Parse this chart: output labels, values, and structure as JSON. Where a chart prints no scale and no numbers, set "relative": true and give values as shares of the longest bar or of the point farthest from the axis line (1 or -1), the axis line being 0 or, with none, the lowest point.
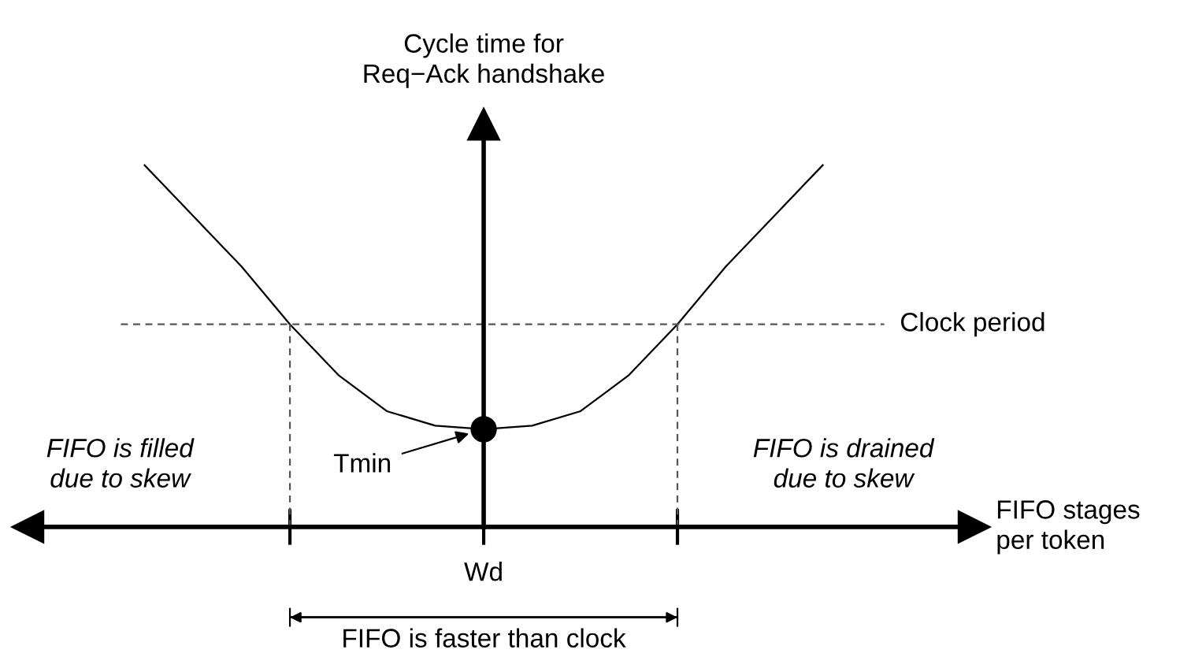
{
  "chart_data": {
    "type": "line",
    "relative": true,
    "ylabel": "Cycle time for\nReq−Ack handshake",
    "xlabel": "FIFO stages\nper token",
    "categories": [
      null,
      null,
      null,
      null,
      null,
      null,
      null,
      null,
      null,
      null,
      null,
      null,
      null,
      null,
      null
    ],
    "series": [
      {
        "color": "#000000",
        "values": [
          1,
          0.86,
          0.72,
          0.56,
          0.42,
          0.32,
          0.28,
          0.27,
          0.28,
          0.32,
          0.42,
          0.56,
          0.72,
          0.86,
          1
        ]
      }
    ],
    "ref_lines": [
      {
        "axis": "y",
        "value": 0.56,
        "label": "Clock period",
        "line_style": "dashed",
        "color": "#555555"
      }
    ],
    "annotations": [
      "FIFO is filled\ndue to skew",
      "FIFO is drained\ndue to skew",
      "Tmin",
      "FIFO is faster than clock",
      "Wd"
    ]
  }
}
